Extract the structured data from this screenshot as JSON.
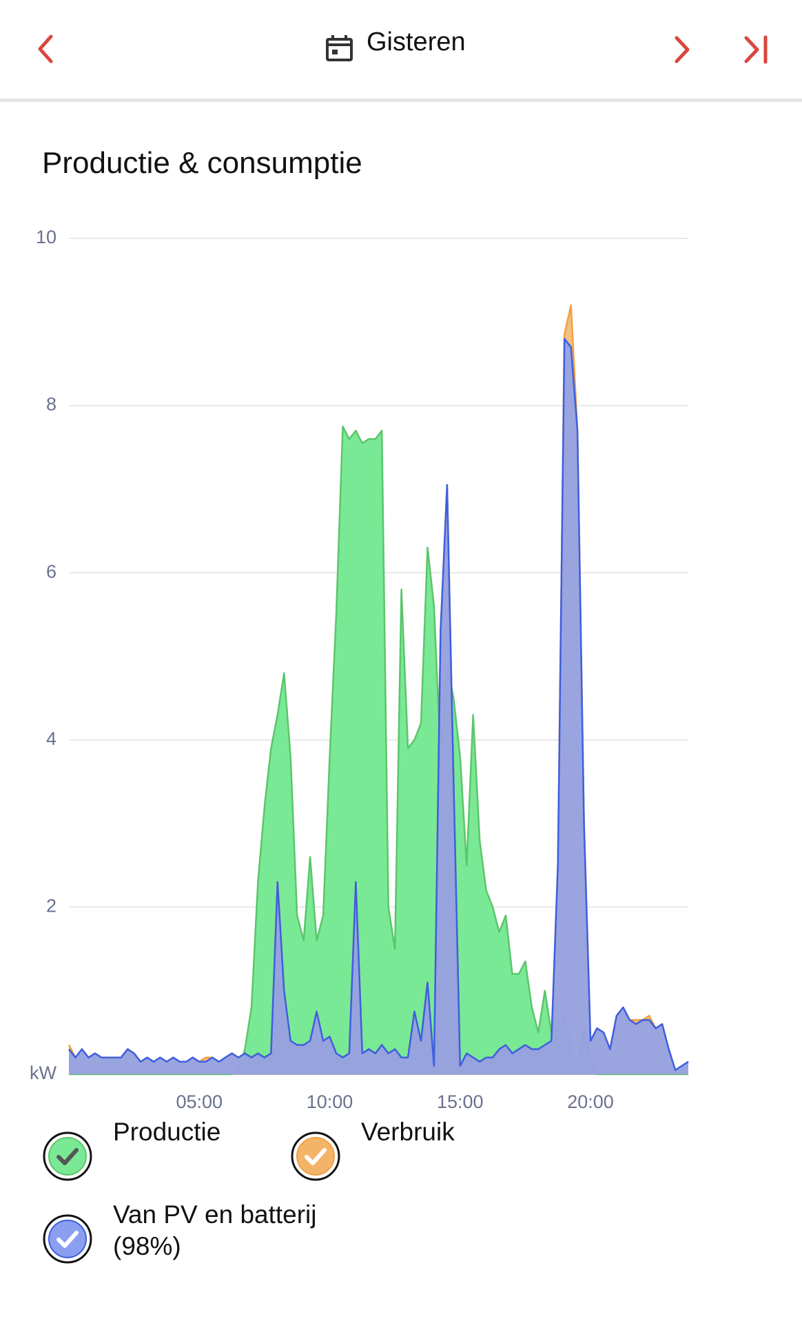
{
  "header": {
    "title": "Gisteren"
  },
  "chart_data": {
    "type": "area",
    "title": "Productie & consumptie",
    "x": [
      0,
      0.25,
      0.5,
      0.75,
      1,
      1.25,
      1.5,
      1.75,
      2,
      2.25,
      2.5,
      2.75,
      3,
      3.25,
      3.5,
      3.75,
      4,
      4.25,
      4.5,
      4.75,
      5,
      5.25,
      5.5,
      5.75,
      6,
      6.25,
      6.5,
      6.75,
      7,
      7.25,
      7.5,
      7.75,
      8,
      8.25,
      8.5,
      8.75,
      9,
      9.25,
      9.5,
      9.75,
      10,
      10.25,
      10.5,
      10.75,
      11,
      11.25,
      11.5,
      11.75,
      12,
      12.25,
      12.5,
      12.75,
      13,
      13.25,
      13.5,
      13.75,
      14,
      14.25,
      14.5,
      14.75,
      15,
      15.25,
      15.5,
      15.75,
      16,
      16.25,
      16.5,
      16.75,
      17,
      17.25,
      17.5,
      17.75,
      18,
      18.25,
      18.5,
      18.75,
      19,
      19.25,
      19.5,
      19.75,
      20,
      20.25,
      20.5,
      20.75,
      21,
      21.25,
      21.5,
      21.75,
      22,
      22.25,
      22.5,
      22.75,
      23,
      23.25,
      23.5,
      23.75
    ],
    "series": [
      {
        "name": "Productie",
        "color": "#5cc56a",
        "fill": "#79e995",
        "values": [
          0,
          0,
          0,
          0,
          0,
          0,
          0,
          0,
          0,
          0,
          0,
          0,
          0,
          0,
          0,
          0,
          0,
          0,
          0,
          0,
          0,
          0,
          0,
          0,
          0,
          0,
          0.05,
          0.3,
          0.8,
          2.3,
          3.2,
          3.9,
          4.3,
          4.8,
          3.8,
          1.9,
          1.6,
          2.6,
          1.6,
          1.9,
          3.8,
          5.5,
          7.75,
          7.6,
          7.7,
          7.55,
          7.6,
          7.6,
          7.7,
          2.0,
          1.5,
          5.8,
          3.9,
          4.0,
          4.2,
          6.3,
          5.6,
          3.8,
          4.9,
          4.5,
          3.8,
          2.5,
          4.3,
          2.8,
          2.2,
          2.0,
          1.7,
          1.9,
          1.2,
          1.2,
          1.35,
          0.8,
          0.5,
          1.0,
          0.5,
          0.6,
          0.7,
          0.3,
          0.1,
          0.55,
          0.2,
          0,
          0,
          0,
          0,
          0,
          0,
          0,
          0,
          0,
          0,
          0,
          0,
          0,
          0,
          0
        ]
      },
      {
        "name": "Verbruik",
        "color": "#f0a040",
        "fill": "#f3b46a",
        "values": [
          0.35,
          0.2,
          0.3,
          0.2,
          0.25,
          0.2,
          0.2,
          0.2,
          0.2,
          0.3,
          0.25,
          0.15,
          0.2,
          0.15,
          0.2,
          0.15,
          0.2,
          0.15,
          0.15,
          0.2,
          0.15,
          0.2,
          0.2,
          0.15,
          0.2,
          0.25,
          0.2,
          0.25,
          0.2,
          0.25,
          0.2,
          0.25,
          2.3,
          1.0,
          0.4,
          0.35,
          0.35,
          0.4,
          0.75,
          0.4,
          0.45,
          0.25,
          0.2,
          0.25,
          2.3,
          0.25,
          0.3,
          0.25,
          0.35,
          0.25,
          0.3,
          0.2,
          0.2,
          0.75,
          0.4,
          1.1,
          0.1,
          5.3,
          7.05,
          3.5,
          0.1,
          0.25,
          0.2,
          0.15,
          0.2,
          0.2,
          0.3,
          0.35,
          0.25,
          0.3,
          0.35,
          0.3,
          0.3,
          0.35,
          0.4,
          2.5,
          8.85,
          9.2,
          7.7,
          3.0,
          0.4,
          0.55,
          0.5,
          0.3,
          0.7,
          0.8,
          0.65,
          0.65,
          0.65,
          0.7,
          0.55,
          0.6,
          0.3,
          0.05,
          0.1,
          0.15
        ]
      },
      {
        "name": "Van PV en batterij (98%)",
        "color": "#3d5fe0",
        "fill": "#8a9ff0",
        "values": [
          0.3,
          0.2,
          0.3,
          0.2,
          0.25,
          0.2,
          0.2,
          0.2,
          0.2,
          0.3,
          0.25,
          0.15,
          0.2,
          0.15,
          0.2,
          0.15,
          0.2,
          0.15,
          0.15,
          0.2,
          0.15,
          0.15,
          0.2,
          0.15,
          0.2,
          0.25,
          0.2,
          0.25,
          0.2,
          0.25,
          0.2,
          0.25,
          2.3,
          1.0,
          0.4,
          0.35,
          0.35,
          0.4,
          0.75,
          0.4,
          0.45,
          0.25,
          0.2,
          0.25,
          2.3,
          0.25,
          0.3,
          0.25,
          0.35,
          0.25,
          0.3,
          0.2,
          0.2,
          0.75,
          0.4,
          1.1,
          0.1,
          5.3,
          7.05,
          3.5,
          0.1,
          0.25,
          0.2,
          0.15,
          0.2,
          0.2,
          0.3,
          0.35,
          0.25,
          0.3,
          0.35,
          0.3,
          0.3,
          0.35,
          0.4,
          2.5,
          8.8,
          8.7,
          7.7,
          3.0,
          0.4,
          0.55,
          0.5,
          0.3,
          0.7,
          0.8,
          0.65,
          0.6,
          0.65,
          0.65,
          0.55,
          0.6,
          0.3,
          0.05,
          0.1,
          0.15
        ]
      }
    ],
    "xlim": [
      0,
      23.75
    ],
    "xticks": [
      {
        "value": 5,
        "label": "05:00"
      },
      {
        "value": 10,
        "label": "10:00"
      },
      {
        "value": 15,
        "label": "15:00"
      },
      {
        "value": 20,
        "label": "20:00"
      }
    ],
    "ylim": [
      0,
      10
    ],
    "yticks": [
      {
        "value": 0,
        "label": "kW"
      },
      2,
      4,
      6,
      8,
      10
    ],
    "grid": true
  }
}
